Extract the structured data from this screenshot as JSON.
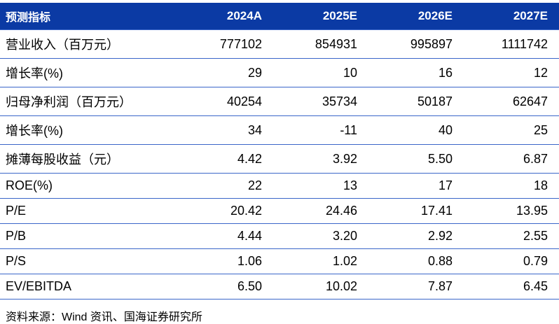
{
  "table": {
    "header": [
      "预测指标",
      "2024A",
      "2025E",
      "2026E",
      "2027E"
    ],
    "rows": [
      {
        "label": "营业收入（百万元）",
        "values": [
          "777102",
          "854931",
          "995897",
          "1111742"
        ]
      },
      {
        "label": "增长率(%)",
        "values": [
          "29",
          "10",
          "16",
          "12"
        ]
      },
      {
        "label": "归母净利润（百万元）",
        "values": [
          "40254",
          "35734",
          "50187",
          "62647"
        ]
      },
      {
        "label": "增长率(%)",
        "values": [
          "34",
          "-11",
          "40",
          "25"
        ]
      },
      {
        "label": "摊薄每股收益（元）",
        "values": [
          "4.42",
          "3.92",
          "5.50",
          "6.87"
        ]
      },
      {
        "label": "ROE(%)",
        "values": [
          "22",
          "13",
          "17",
          "18"
        ]
      },
      {
        "label": "P/E",
        "values": [
          "20.42",
          "24.46",
          "17.41",
          "13.95"
        ]
      },
      {
        "label": "P/B",
        "values": [
          "4.44",
          "3.20",
          "2.92",
          "2.55"
        ]
      },
      {
        "label": "P/S",
        "values": [
          "1.06",
          "1.02",
          "0.88",
          "0.79"
        ]
      },
      {
        "label": "EV/EBITDA",
        "values": [
          "6.50",
          "10.02",
          "7.87",
          "6.45"
        ]
      }
    ]
  },
  "footer": {
    "source": "资料来源：Wind 资讯、国海证券研究所"
  },
  "colors": {
    "header_bg": "#0b3aa4",
    "divider": "#3a66c9"
  }
}
